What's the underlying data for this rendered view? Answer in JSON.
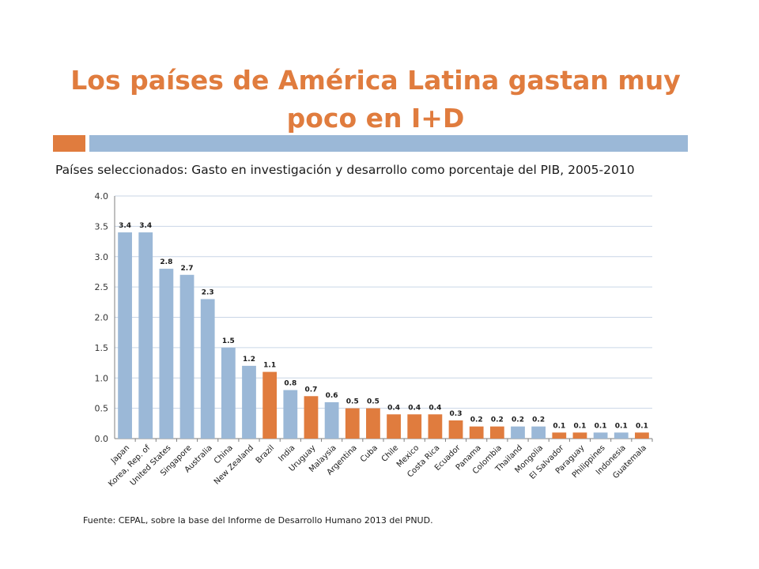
{
  "slide": {
    "title_line1": "Los países de América Latina gastan muy",
    "title_line2": "poco en I+D"
  },
  "source_note": "Fuente: CEPAL, sobre la base del Informe de Desarrollo Humano 2013 del PNUD.",
  "colors": {
    "title": "#e07c3e",
    "latam": "#e07c3e",
    "other": "#9bb8d7",
    "grid": "#c9d6e6"
  },
  "chart_data": {
    "type": "bar",
    "title": "Países seleccionados: Gasto en investigación y desarrollo como porcentaje del PIB, 2005-2010",
    "xlabel": "",
    "ylabel": "",
    "ylim": [
      0,
      4.0
    ],
    "yticks": [
      "0.0",
      "0.5",
      "1.0",
      "1.5",
      "2.0",
      "2.5",
      "3.0",
      "3.5",
      "4.0"
    ],
    "grid": true,
    "categories": [
      "Japan",
      "Korea, Rep. of",
      "United States",
      "Singapore",
      "Australia",
      "China",
      "New Zealand",
      "Brazil",
      "India",
      "Uruguay",
      "Malaysia",
      "Argentina",
      "Cuba",
      "Chile",
      "Mexico",
      "Costa Rica",
      "Ecuador",
      "Panama",
      "Colombia",
      "Thailand",
      "Mongolia",
      "El Salvador",
      "Paraguay",
      "Philippines",
      "Indonesia",
      "Guatemala"
    ],
    "values": [
      3.4,
      3.4,
      2.8,
      2.7,
      2.3,
      1.5,
      1.2,
      1.1,
      0.8,
      0.7,
      0.6,
      0.5,
      0.5,
      0.4,
      0.4,
      0.4,
      0.3,
      0.2,
      0.2,
      0.2,
      0.2,
      0.1,
      0.1,
      0.1,
      0.1,
      0.1
    ],
    "labels": [
      "3.4",
      "3.4",
      "2.8",
      "2.7",
      "2.3",
      "1.5",
      "1.2",
      "1.1",
      "0.8",
      "0.7",
      "0.6",
      "0.5",
      "0.5",
      "0.4",
      "0.4",
      "0.4",
      "0.3",
      "0.2",
      "0.2",
      "0.2",
      "0.2",
      "0.1",
      "0.1",
      "0.1",
      "0.1",
      "0.1"
    ],
    "latin_america": [
      false,
      false,
      false,
      false,
      false,
      false,
      false,
      true,
      false,
      true,
      false,
      true,
      true,
      true,
      true,
      true,
      true,
      true,
      true,
      false,
      false,
      true,
      true,
      false,
      false,
      true
    ]
  }
}
